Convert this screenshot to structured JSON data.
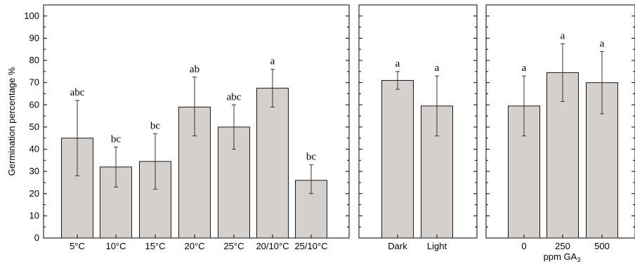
{
  "chart_data": [
    {
      "type": "bar",
      "categories": [
        "5°C",
        "10°C",
        "15°C",
        "20°C",
        "25°C",
        "20/10°C",
        "25/10°C"
      ],
      "values": [
        45,
        32,
        34.5,
        59,
        50,
        67.5,
        26
      ],
      "error_low": [
        28,
        23,
        22,
        46,
        40,
        59,
        20
      ],
      "error_high": [
        62,
        41,
        47,
        72.5,
        60,
        76,
        33
      ],
      "letters": [
        "abc",
        "bc",
        "bc",
        "ab",
        "abc",
        "a",
        "bc"
      ],
      "ylabel": "Germination percentage %",
      "ylim": [
        0,
        105
      ],
      "yticks": [
        "0",
        "10",
        "20",
        "30",
        "40",
        "50",
        "60",
        "70",
        "80",
        "90",
        "100"
      ],
      "bar_color": "#d5d0cb",
      "grid": false
    },
    {
      "type": "bar",
      "categories": [
        "Dark",
        "Light"
      ],
      "values": [
        71,
        59.5
      ],
      "error_low": [
        67,
        46
      ],
      "error_high": [
        75,
        73
      ],
      "letters": [
        "a",
        "a"
      ],
      "ylim": [
        0,
        105
      ],
      "bar_color": "#d5d0cb",
      "grid": false
    },
    {
      "type": "bar",
      "categories": [
        "0",
        "250",
        "500"
      ],
      "values": [
        59.5,
        74.5,
        70
      ],
      "error_low": [
        46,
        61.5,
        56
      ],
      "error_high": [
        73,
        87.5,
        84
      ],
      "letters": [
        "a",
        "a",
        "a"
      ],
      "xlabel": "ppm GA",
      "xlabel_sub": "3",
      "ylim": [
        0,
        105
      ],
      "bar_color": "#d5d0cb",
      "grid": false
    }
  ]
}
